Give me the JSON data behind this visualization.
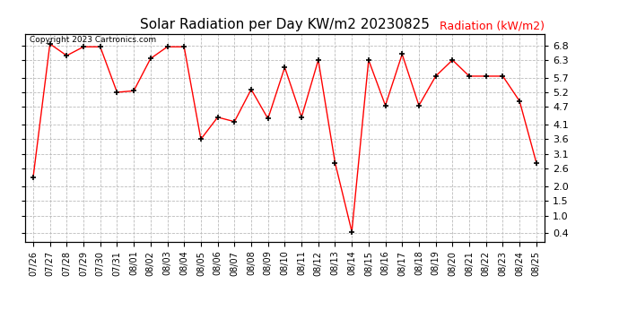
{
  "title": "Solar Radiation per Day KW/m2 20230825",
  "ylabel_text": "Radiation (kW/m2)",
  "copyright": "Copyright 2023 Cartronics.com",
  "line_color": "red",
  "marker_color": "black",
  "background_color": "white",
  "grid_color": "#bbbbbb",
  "dates": [
    "07/26",
    "07/27",
    "07/28",
    "07/29",
    "07/30",
    "07/31",
    "08/01",
    "08/02",
    "08/03",
    "08/04",
    "08/05",
    "08/06",
    "08/07",
    "08/08",
    "08/09",
    "08/10",
    "08/11",
    "08/12",
    "08/13",
    "08/14",
    "08/15",
    "08/16",
    "08/17",
    "08/18",
    "08/19",
    "08/20",
    "08/21",
    "08/22",
    "08/23",
    "08/24",
    "08/25"
  ],
  "values": [
    2.3,
    6.85,
    6.45,
    6.75,
    6.75,
    5.2,
    5.25,
    6.35,
    6.75,
    6.75,
    3.6,
    4.35,
    4.2,
    5.3,
    4.3,
    6.05,
    4.35,
    6.3,
    2.8,
    0.45,
    6.3,
    4.75,
    6.5,
    4.75,
    5.75,
    6.3,
    5.75,
    5.75,
    5.75,
    4.9,
    2.8
  ],
  "yticks": [
    0.4,
    1.0,
    1.5,
    2.0,
    2.6,
    3.1,
    3.6,
    4.1,
    4.7,
    5.2,
    5.7,
    6.3,
    6.8
  ],
  "ylim": [
    0.1,
    7.2
  ],
  "figsize": [
    6.9,
    3.75
  ],
  "dpi": 100
}
